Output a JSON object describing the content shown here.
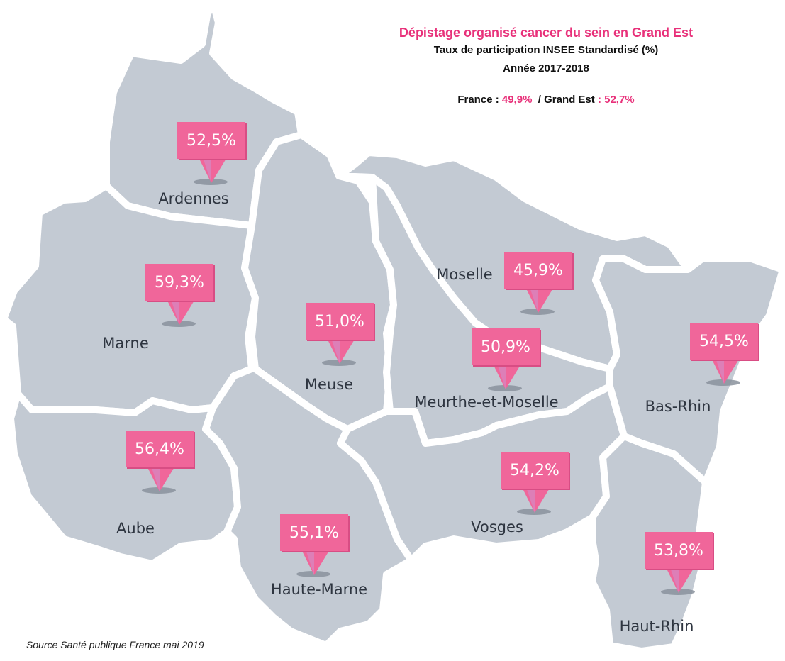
{
  "title": "Dépistage organisé cancer du sein en Grand Est",
  "subtitle": "Taux de participation  INSEE Standardisé (%)",
  "period": "Année 2017-2018",
  "stats": {
    "france_label": "France : ",
    "france_value": "49,9%",
    "separator": "  / Grand Est ",
    "grand_est_value": ": 52,7%"
  },
  "colors": {
    "region_fill": "#c3cad3",
    "border": "#ffffff",
    "marker": "#f0669a",
    "accent_text": "#e8317a"
  },
  "departments": [
    {
      "id": "ardennes",
      "name": "Ardennes",
      "rate": "52,5%"
    },
    {
      "id": "marne",
      "name": "Marne",
      "rate": "59,3%"
    },
    {
      "id": "meuse",
      "name": "Meuse",
      "rate": "51,0%"
    },
    {
      "id": "moselle",
      "name": "Moselle",
      "rate": "45,9%"
    },
    {
      "id": "meurthe-et-moselle",
      "name": "Meurthe-et-Moselle",
      "rate": "50,9%"
    },
    {
      "id": "bas-rhin",
      "name": "Bas-Rhin",
      "rate": "54,5%"
    },
    {
      "id": "aube",
      "name": "Aube",
      "rate": "56,4%"
    },
    {
      "id": "haute-marne",
      "name": "Haute-Marne",
      "rate": "55,1%"
    },
    {
      "id": "vosges",
      "name": "Vosges",
      "rate": "54,2%"
    },
    {
      "id": "haut-rhin",
      "name": "Haut-Rhin",
      "rate": "53,8%"
    }
  ],
  "source": "Source Santé publique France mai 2019"
}
